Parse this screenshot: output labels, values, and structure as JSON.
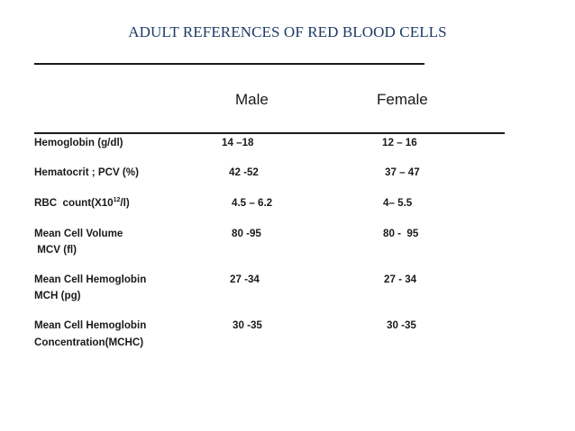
{
  "title": "ADULT  REFERENCES OF RED BLOOD CELLS",
  "columns": {
    "male": "Male",
    "female": "Female"
  },
  "rows": [
    {
      "param": "Hemoglobin (g/dl)",
      "male": "14 –18",
      "female": "12 – 16"
    },
    {
      "param": "Hematocrit ; PCV (%)",
      "male": "42 -52",
      "female": "37 – 47"
    },
    {
      "param_pre": "RBC  count(X10",
      "param_sup": "12",
      "param_post": "/l)",
      "male": "4.5 – 6.2",
      "female": "4– 5.5"
    },
    {
      "param": "Mean Cell Volume",
      "param2": " MCV (fl)",
      "male": "80 -95",
      "female": "80 -  95"
    },
    {
      "param": "Mean Cell Hemoglobin",
      "param2": "MCH (pg)",
      "male": "27 -34",
      "female": "27 - 34"
    },
    {
      "param": "Mean Cell Hemoglobin",
      "param2": "Concentration(MCHC)",
      "male": "30 -35",
      "female": "30 -35"
    }
  ]
}
